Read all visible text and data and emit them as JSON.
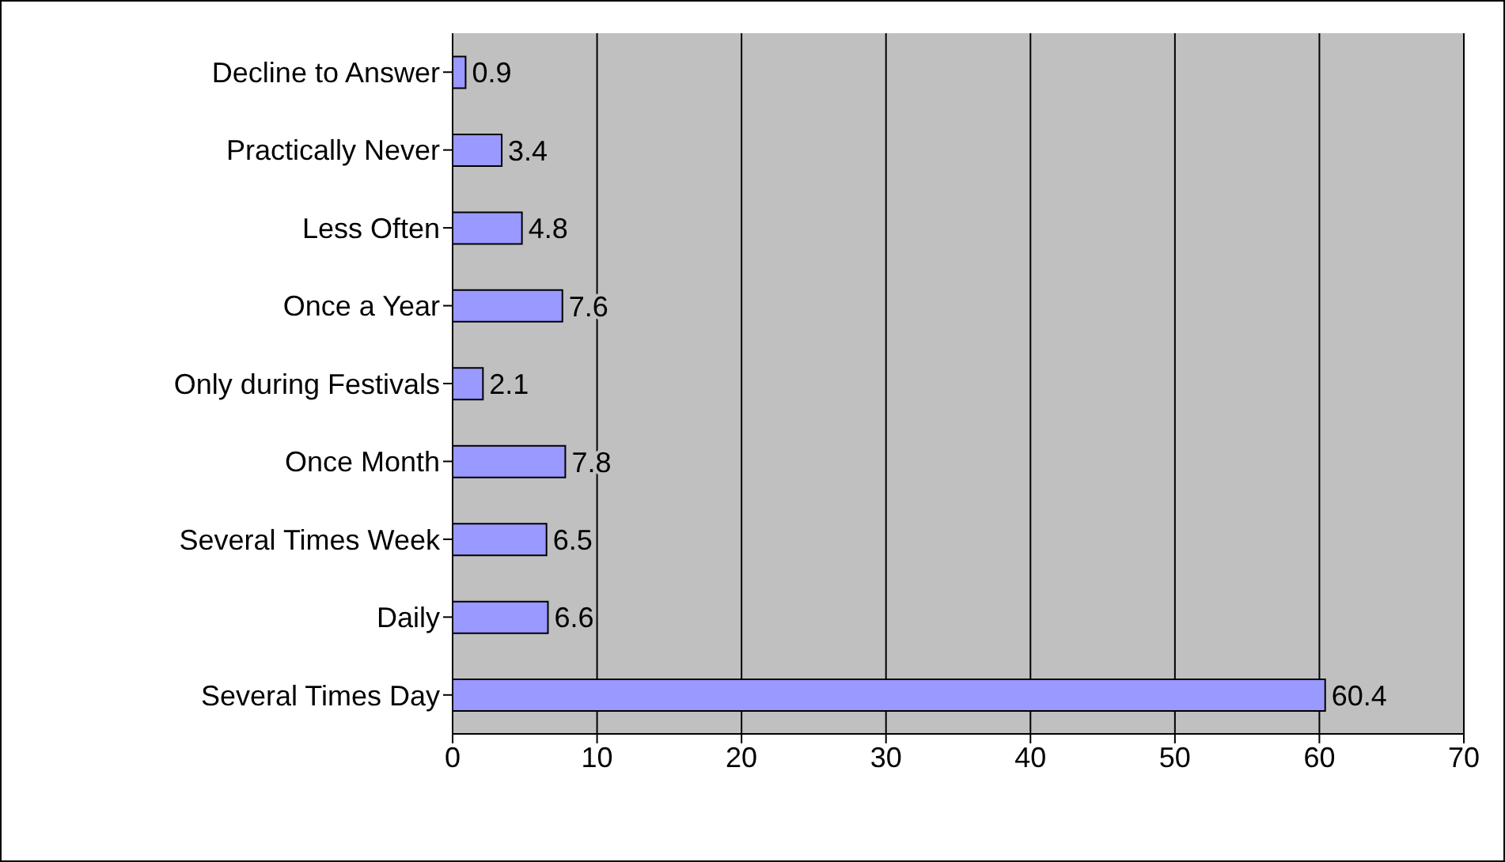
{
  "chart_data": {
    "type": "bar",
    "orientation": "horizontal",
    "categories": [
      "Decline to Answer",
      "Practically Never",
      "Less Often",
      "Once a Year",
      "Only during Festivals",
      "Once Month",
      "Several Times Week",
      "Daily",
      "Several Times Day"
    ],
    "values": [
      0.9,
      3.4,
      4.8,
      7.6,
      2.1,
      7.8,
      6.5,
      6.6,
      60.4
    ],
    "color": "#9999ff",
    "xlim": [
      0,
      70
    ],
    "xticks": [
      0,
      10,
      20,
      30,
      40,
      50,
      60,
      70
    ],
    "grid": "x",
    "data_labels": true
  }
}
